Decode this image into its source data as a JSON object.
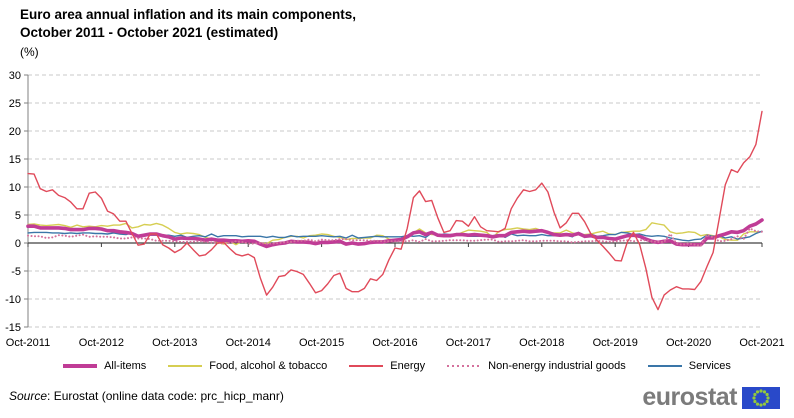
{
  "title": {
    "line1": "Euro area annual inflation and its main components,",
    "line2": "October 2011 - October 2021 (estimated)",
    "unit": "(%)"
  },
  "source": {
    "label_italic": "Source",
    "rest": ": Eurostat (online data code: prc_hicp_manr)"
  },
  "logo": {
    "text": "eurostat"
  },
  "colors": {
    "grid": "#c9c9c9",
    "axis": "#808080",
    "zero_line": "#404040",
    "logo_blue": "#2949c9",
    "logo_stars": "#93c83d",
    "logo_gray": "#7b7b7b"
  },
  "chart_data": {
    "type": "line",
    "title": "Euro area annual inflation and its main components, October 2011 - October 2021 (estimated)",
    "ylabel": "(%)",
    "ylim": [
      -15,
      30
    ],
    "y_ticks": [
      30,
      25,
      20,
      15,
      10,
      5,
      0,
      -5,
      -10,
      -15
    ],
    "x_tick_labels": [
      "Oct-2011",
      "Oct-2012",
      "Oct-2013",
      "Oct-2014",
      "Oct-2015",
      "Oct-2016",
      "Oct-2017",
      "Oct-2018",
      "Oct-2019",
      "Oct-2020",
      "Oct-2021"
    ],
    "x_frequency": "monthly",
    "grid": "horizontal-dashed",
    "legend_position": "bottom",
    "series": [
      {
        "name": "All-items",
        "color": "#c03c96",
        "width": 3.6,
        "style": "solid",
        "values": [
          3.0,
          3.0,
          2.7,
          2.7,
          2.7,
          2.7,
          2.6,
          2.4,
          2.4,
          2.4,
          2.6,
          2.6,
          2.5,
          2.2,
          2.2,
          2.0,
          1.9,
          1.7,
          1.2,
          1.4,
          1.6,
          1.6,
          1.3,
          1.1,
          0.7,
          0.9,
          0.8,
          0.8,
          0.7,
          0.5,
          0.7,
          0.5,
          0.5,
          0.4,
          0.4,
          0.3,
          0.4,
          0.3,
          -0.2,
          -0.6,
          -0.3,
          -0.1,
          0.0,
          0.3,
          0.2,
          0.2,
          0.1,
          -0.1,
          0.1,
          0.1,
          0.2,
          0.3,
          -0.2,
          0.0,
          -0.2,
          -0.1,
          0.1,
          0.2,
          0.2,
          0.4,
          0.5,
          0.6,
          1.1,
          1.8,
          2.0,
          1.5,
          1.9,
          1.4,
          1.3,
          1.3,
          1.5,
          1.5,
          1.4,
          1.5,
          1.4,
          1.3,
          1.1,
          1.3,
          1.3,
          1.9,
          2.0,
          2.1,
          2.0,
          2.1,
          2.2,
          1.9,
          1.5,
          1.4,
          1.5,
          1.4,
          1.7,
          1.2,
          1.3,
          1.0,
          1.0,
          0.8,
          0.7,
          1.0,
          1.3,
          1.4,
          1.2,
          0.7,
          0.3,
          0.1,
          0.3,
          0.4,
          -0.2,
          -0.3,
          -0.3,
          -0.3,
          -0.3,
          0.9,
          0.9,
          1.3,
          1.6,
          2.0,
          1.9,
          2.2,
          3.0,
          3.4,
          4.1
        ]
      },
      {
        "name": "Food, alcohol & tobacco",
        "color": "#d6ce52",
        "width": 1.4,
        "style": "solid",
        "values": [
          3.3,
          3.4,
          3.2,
          3.1,
          3.2,
          3.3,
          3.1,
          2.8,
          3.2,
          2.9,
          3.0,
          2.9,
          3.1,
          3.0,
          3.2,
          3.2,
          3.5,
          2.7,
          2.9,
          3.3,
          3.2,
          3.5,
          3.2,
          2.6,
          1.9,
          1.6,
          1.8,
          1.7,
          1.5,
          1.0,
          0.7,
          0.1,
          -0.2,
          0.3,
          -0.3,
          0.3,
          0.5,
          0.5,
          0.0,
          -0.1,
          0.5,
          0.6,
          1.0,
          1.2,
          1.2,
          0.9,
          1.3,
          1.4,
          1.6,
          1.5,
          1.2,
          1.0,
          0.6,
          0.8,
          0.8,
          0.9,
          0.9,
          1.4,
          1.3,
          0.7,
          0.4,
          0.7,
          1.2,
          1.8,
          2.5,
          1.8,
          1.5,
          1.5,
          1.4,
          1.4,
          1.4,
          1.9,
          2.3,
          2.2,
          2.1,
          1.9,
          1.0,
          2.1,
          2.4,
          2.5,
          2.7,
          2.5,
          2.4,
          2.6,
          2.2,
          1.9,
          1.8,
          1.8,
          2.3,
          1.8,
          1.5,
          1.5,
          1.6,
          1.9,
          2.1,
          1.6,
          1.5,
          1.9,
          2.0,
          2.1,
          2.1,
          2.4,
          3.6,
          3.4,
          3.2,
          2.0,
          1.7,
          1.8,
          2.0,
          1.9,
          1.3,
          1.5,
          1.3,
          1.1,
          0.6,
          0.5,
          0.5,
          1.6,
          2.0,
          2.0,
          2.0
        ]
      },
      {
        "name": "Energy",
        "color": "#e04a5a",
        "width": 1.4,
        "style": "solid",
        "values": [
          12.4,
          12.3,
          9.7,
          9.2,
          9.5,
          8.5,
          8.1,
          7.3,
          6.1,
          6.1,
          8.9,
          9.1,
          8.0,
          5.7,
          5.2,
          3.9,
          3.9,
          1.7,
          -0.4,
          -0.2,
          1.6,
          1.6,
          -0.3,
          -0.9,
          -1.7,
          -1.1,
          0.0,
          -1.2,
          -2.3,
          -2.1,
          -1.2,
          0.0,
          0.1,
          -1.0,
          -2.0,
          -2.3,
          -2.0,
          -2.6,
          -6.3,
          -9.3,
          -7.9,
          -6.0,
          -5.8,
          -4.8,
          -5.1,
          -5.6,
          -7.2,
          -8.9,
          -8.5,
          -7.3,
          -5.8,
          -5.4,
          -8.1,
          -8.7,
          -8.7,
          -8.1,
          -6.4,
          -6.7,
          -5.6,
          -3.0,
          -0.9,
          -1.1,
          2.6,
          8.1,
          9.3,
          7.4,
          7.6,
          4.5,
          1.9,
          2.2,
          4.0,
          3.9,
          3.0,
          4.7,
          2.9,
          2.2,
          2.1,
          2.0,
          2.6,
          6.1,
          8.0,
          9.5,
          9.2,
          9.5,
          10.7,
          9.1,
          5.5,
          2.7,
          3.6,
          5.3,
          5.3,
          3.8,
          1.7,
          0.5,
          -0.6,
          -1.8,
          -3.1,
          -3.2,
          0.2,
          1.9,
          -0.3,
          -4.5,
          -9.7,
          -11.9,
          -9.3,
          -8.4,
          -7.8,
          -8.2,
          -8.2,
          -8.3,
          -6.9,
          -4.2,
          -1.7,
          4.3,
          10.4,
          13.1,
          12.6,
          14.3,
          15.4,
          17.6,
          23.5
        ]
      },
      {
        "name": "Non-energy industrial goods",
        "color": "#d4719c",
        "width": 2.0,
        "style": "dotted",
        "values": [
          1.3,
          1.2,
          1.2,
          0.9,
          1.0,
          1.4,
          1.3,
          1.1,
          1.3,
          1.5,
          1.1,
          1.2,
          1.1,
          1.1,
          1.0,
          0.8,
          0.8,
          1.0,
          0.8,
          0.8,
          0.7,
          0.4,
          0.4,
          0.4,
          0.3,
          0.2,
          0.2,
          0.2,
          0.4,
          0.2,
          0.1,
          0.0,
          -0.1,
          0.0,
          0.3,
          0.2,
          -0.1,
          -0.1,
          0.0,
          -0.1,
          -0.1,
          0.0,
          0.1,
          0.2,
          0.4,
          0.4,
          0.6,
          0.3,
          0.6,
          0.5,
          0.5,
          0.7,
          0.7,
          0.5,
          0.5,
          0.5,
          0.4,
          0.4,
          0.3,
          0.3,
          0.3,
          0.3,
          0.3,
          0.5,
          0.2,
          0.7,
          0.3,
          0.3,
          0.4,
          0.5,
          0.5,
          0.5,
          0.4,
          0.4,
          0.5,
          0.6,
          0.6,
          0.2,
          0.3,
          0.3,
          0.4,
          0.5,
          0.3,
          0.3,
          0.4,
          0.4,
          0.4,
          0.3,
          0.3,
          0.1,
          0.2,
          0.3,
          0.3,
          0.4,
          0.3,
          0.2,
          0.3,
          0.4,
          0.5,
          0.3,
          0.5,
          0.5,
          0.3,
          0.2,
          0.2,
          1.6,
          -0.1,
          -0.3,
          -0.1,
          -0.3,
          -0.5,
          1.5,
          1.0,
          0.3,
          0.4,
          0.7,
          1.2,
          0.7,
          2.6,
          2.1,
          2.0
        ]
      },
      {
        "name": "Services",
        "color": "#3a76a8",
        "width": 1.4,
        "style": "solid",
        "values": [
          1.8,
          1.9,
          1.9,
          1.9,
          1.8,
          1.8,
          1.7,
          1.8,
          1.7,
          1.8,
          1.8,
          1.7,
          1.7,
          1.6,
          1.8,
          1.6,
          1.5,
          1.8,
          1.1,
          1.5,
          1.4,
          1.4,
          1.4,
          1.4,
          1.2,
          1.4,
          1.0,
          1.2,
          1.3,
          1.1,
          1.6,
          1.1,
          1.3,
          1.3,
          1.3,
          1.1,
          1.2,
          1.2,
          1.2,
          1.0,
          1.2,
          1.0,
          1.0,
          1.3,
          1.1,
          1.2,
          1.2,
          1.2,
          1.3,
          1.2,
          1.1,
          1.2,
          0.9,
          1.4,
          0.9,
          1.0,
          1.1,
          1.2,
          1.1,
          1.1,
          1.1,
          1.1,
          1.3,
          1.2,
          1.3,
          1.0,
          1.8,
          1.3,
          1.6,
          1.5,
          1.6,
          1.5,
          1.2,
          1.2,
          1.2,
          1.2,
          1.3,
          1.5,
          1.0,
          1.6,
          1.3,
          1.4,
          1.3,
          1.3,
          1.5,
          1.3,
          1.3,
          1.6,
          1.4,
          1.1,
          1.9,
          1.0,
          1.6,
          1.2,
          1.3,
          1.5,
          1.5,
          1.9,
          1.8,
          1.5,
          1.6,
          1.3,
          1.2,
          1.3,
          1.2,
          0.9,
          0.7,
          0.5,
          0.4,
          0.6,
          0.7,
          1.4,
          1.2,
          1.3,
          0.9,
          1.1,
          0.7,
          0.9,
          1.1,
          1.7,
          2.1
        ]
      }
    ]
  }
}
